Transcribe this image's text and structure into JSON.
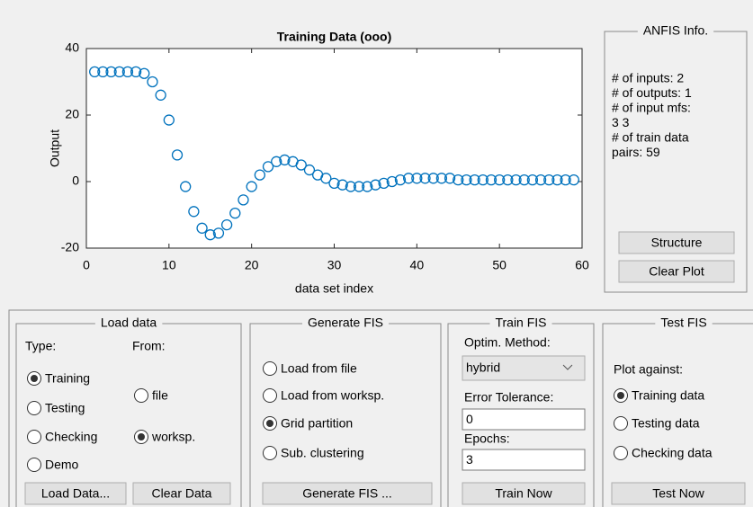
{
  "chart_data": {
    "type": "scatter",
    "title": "Training Data (ooo)",
    "xlabel": "data set index",
    "ylabel": "Output",
    "x": [
      1,
      2,
      3,
      4,
      5,
      6,
      7,
      8,
      9,
      10,
      11,
      12,
      13,
      14,
      15,
      16,
      17,
      18,
      19,
      20,
      21,
      22,
      23,
      24,
      25,
      26,
      27,
      28,
      29,
      30,
      31,
      32,
      33,
      34,
      35,
      36,
      37,
      38,
      39,
      40,
      41,
      42,
      43,
      44,
      45,
      46,
      47,
      48,
      49,
      50,
      51,
      52,
      53,
      54,
      55,
      56,
      57,
      58,
      59
    ],
    "values": [
      33,
      33,
      33,
      33,
      33,
      33,
      32.5,
      30,
      26,
      18.5,
      8,
      -1.5,
      -9,
      -14,
      -16,
      -15.5,
      -13,
      -9.5,
      -5.5,
      -1.5,
      2,
      4.5,
      6,
      6.5,
      6,
      5,
      3.5,
      2,
      1,
      -0.5,
      -1,
      -1.5,
      -1.5,
      -1.5,
      -1,
      -0.5,
      0,
      0.5,
      1,
      1,
      1,
      1,
      1,
      1,
      0.5,
      0.5,
      0.5,
      0.5,
      0.5,
      0.5,
      0.5,
      0.5,
      0.5,
      0.5,
      0.5,
      0.5,
      0.5,
      0.5,
      0.5
    ],
    "color": "#0072bd",
    "xlim": [
      0,
      60
    ],
    "ylim": [
      -20,
      40
    ],
    "xticks": [
      0,
      10,
      20,
      30,
      40,
      50,
      60
    ],
    "yticks": [
      -20,
      0,
      20,
      40
    ]
  },
  "anfis_info": {
    "title": "ANFIS Info.",
    "lines": [
      "# of inputs: 2",
      "# of outputs: 1",
      "# of input mfs:",
      "3  3",
      "# of train data",
      "pairs: 59"
    ],
    "buttons": [
      {
        "label": "Structure",
        "disabled": true
      },
      {
        "label": "Clear Plot",
        "disabled": false
      }
    ]
  },
  "load_data": {
    "title": "Load data",
    "type_label": "Type:",
    "from_label": "From:",
    "type_options": [
      "Training",
      "Testing",
      "Checking",
      "Demo"
    ],
    "type_selected": 0,
    "from_options": [
      "file",
      "worksp."
    ],
    "from_selected": 1,
    "buttons": [
      {
        "label": "Load Data...",
        "disabled": false
      },
      {
        "label": "Clear Data",
        "disabled": false
      }
    ]
  },
  "generate_fis": {
    "title": "Generate FIS",
    "options": [
      "Load from file",
      "Load from worksp.",
      "Grid partition",
      "Sub. clustering"
    ],
    "selected": 2,
    "button": {
      "label": "Generate FIS ...",
      "disabled": false
    }
  },
  "train_fis": {
    "title": "Train FIS",
    "method_label": "Optim. Method:",
    "method": "hybrid",
    "tolerance_label": "Error Tolerance:",
    "tolerance": "0",
    "epochs_label": "Epochs:",
    "epochs": "3",
    "button": {
      "label": "Train Now",
      "disabled": false
    }
  },
  "test_fis": {
    "title": "Test FIS",
    "plot_label": "Plot against:",
    "options": [
      "Training data",
      "Testing data",
      "Checking data"
    ],
    "selected": 0,
    "button": {
      "label": "Test Now",
      "disabled": true
    }
  }
}
